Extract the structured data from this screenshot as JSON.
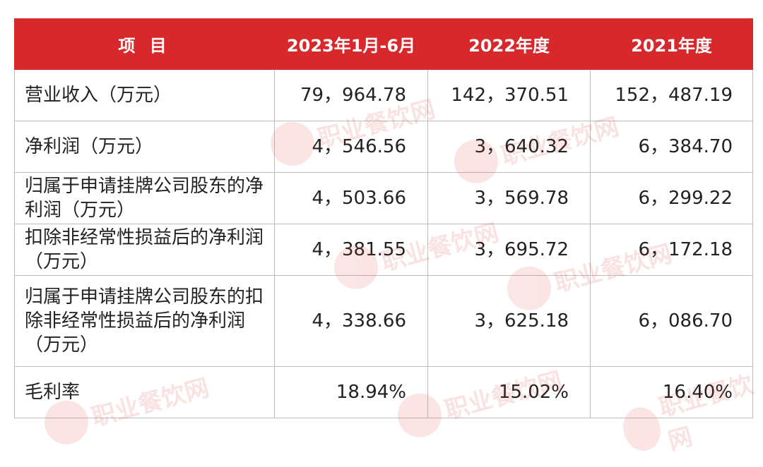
{
  "table": {
    "headers": [
      "项 目",
      "2023年1月-6月",
      "2022年度",
      "2021年度"
    ],
    "rows": [
      {
        "label": "营业收入（万元）",
        "values": [
          "79，964.78",
          "142，370.51",
          "152，487.19"
        ]
      },
      {
        "label": "净利润（万元）",
        "values": [
          "4，546.56",
          "3，640.32",
          "6，384.70"
        ]
      },
      {
        "label": "归属于申请挂牌公司股东的净利润（万元）",
        "values": [
          "4，503.66",
          "3，569.78",
          "6，299.22"
        ]
      },
      {
        "label": "扣除非经常性损益后的净利润（万元）",
        "values": [
          "4，381.55",
          "3，695.72",
          "6，172.18"
        ]
      },
      {
        "label": "归属于申请挂牌公司股东的扣除非经常性损益后的净利润（万元）",
        "values": [
          "4，338.66",
          "3，625.18",
          "6，086.70"
        ]
      },
      {
        "label": "毛利率",
        "values": [
          "18.94%",
          "15.02%",
          "16.40%"
        ]
      }
    ]
  },
  "watermark": {
    "text": "职业餐饮网"
  },
  "colors": {
    "header_bg": "#d7282c",
    "header_text": "#ffffff",
    "border": "#bdbdbd",
    "watermark": "#d62a2a"
  }
}
